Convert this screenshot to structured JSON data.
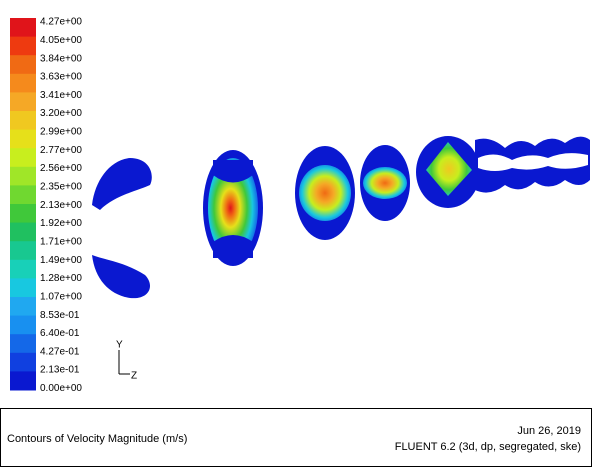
{
  "colorbar": {
    "labels": [
      "4.27e+00",
      "4.05e+00",
      "3.84e+00",
      "3.63e+00",
      "3.41e+00",
      "3.20e+00",
      "2.99e+00",
      "2.77e+00",
      "2.56e+00",
      "2.35e+00",
      "2.13e+00",
      "1.92e+00",
      "1.71e+00",
      "1.49e+00",
      "1.28e+00",
      "1.07e+00",
      "8.53e-01",
      "6.40e-01",
      "4.27e-01",
      "2.13e-01",
      "0.00e+00"
    ],
    "colors": [
      "#e0141a",
      "#ee3a10",
      "#f06a14",
      "#f58a1c",
      "#f5a826",
      "#f0c820",
      "#e6e01a",
      "#c8ee1e",
      "#a0e628",
      "#70d830",
      "#40c83a",
      "#20c060",
      "#18c890",
      "#18d0b8",
      "#18c8e0",
      "#20a8f0",
      "#1890f0",
      "#1468e8",
      "#1040e0",
      "#0a18d0"
    ]
  },
  "axes": {
    "y": "Y",
    "z": "Z"
  },
  "footer": {
    "title": "Contours of Velocity Magnitude (m/s)",
    "date": "Jun 26, 2019",
    "solver": "FLUENT 6.2 (3d, dp, segregated, ske)"
  }
}
